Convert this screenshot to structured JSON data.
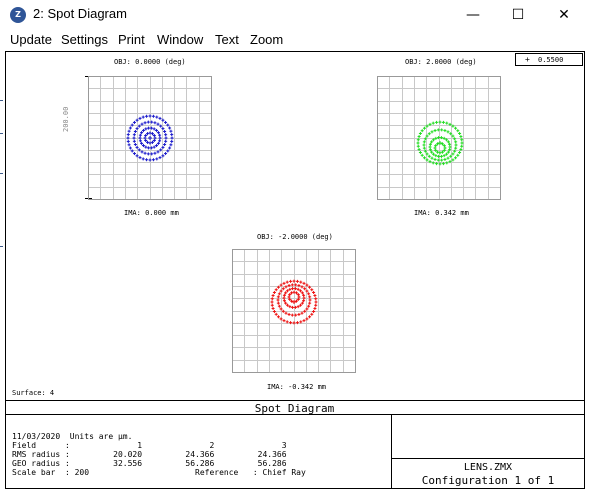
{
  "window": {
    "title": "2: Spot Diagram",
    "app_icon_text": "Z",
    "minimize": "—",
    "maximize": "☐",
    "close": "✕"
  },
  "menu": {
    "items": [
      "Update",
      "Settings",
      "Print",
      "Window",
      "Text",
      "Zoom"
    ]
  },
  "legend": {
    "marker": "+",
    "wavelength": "0.5500"
  },
  "plots": [
    {
      "obj": "OBJ: 0.0000 (deg)",
      "ima": "IMA: 0.000 mm",
      "color": "#1a1acc"
    },
    {
      "obj": "OBJ: 2.0000 (deg)",
      "ima": "IMA: 0.342 mm",
      "color": "#22dd22"
    },
    {
      "obj": "OBJ: -2.0000 (deg)",
      "ima": "IMA: -0.342 mm",
      "color": "#ee1111"
    }
  ],
  "scale_label": "200.00",
  "surface_label": "Surface: 4",
  "footer": {
    "title": "Spot Diagram",
    "info_lines": [
      "11/03/2020  Units are µm.",
      "Field      :              1              2              3",
      "RMS radius :         20.020         24.366         24.366",
      "GEO radius :         32.556         56.286         56.286",
      "Scale bar  : 200                      Reference   : Chief Ray"
    ],
    "lens_file": "LENS.ZMX",
    "configuration": "Configuration 1 of 1"
  }
}
